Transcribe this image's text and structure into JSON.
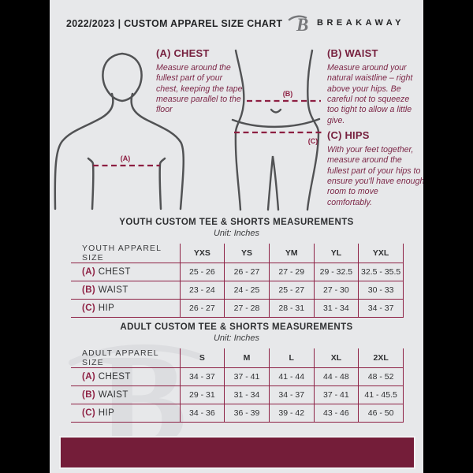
{
  "header": {
    "title": "2022/2023 | CUSTOM APPAREL SIZE CHART",
    "brand": "BREAKAWAY",
    "watermark_letter": "B"
  },
  "guide": {
    "chest": {
      "marker": "(A)",
      "heading": "(A) CHEST",
      "body": "Measure around the fullest part of your chest, keeping the tape measure parallel to the floor"
    },
    "waist": {
      "marker": "(B)",
      "heading": "(B) WAIST",
      "body": "Measure around your natural waistline – right above your hips. Be careful not to squeeze too tight to allow a little give."
    },
    "hips": {
      "marker": "(C)",
      "heading": "(C) HIPS",
      "body": "With your feet together, measure around the fullest part of your hips to ensure you'll have enough room to move comfortably."
    }
  },
  "tables": [
    {
      "title": "YOUTH CUSTOM TEE & SHORTS MEASUREMENTS",
      "unit": "Unit: Inches",
      "size_header": "YOUTH APPAREL SIZE",
      "sizes": [
        "YXS",
        "YS",
        "YM",
        "YL",
        "YXL"
      ],
      "rows": [
        {
          "key": "(A)",
          "label": "CHEST",
          "values": [
            "25 - 26",
            "26 - 27",
            "27 - 29",
            "29 - 32.5",
            "32.5 - 35.5"
          ]
        },
        {
          "key": "(B)",
          "label": "WAIST",
          "values": [
            "23 - 24",
            "24 - 25",
            "25 - 27",
            "27 - 30",
            "30 - 33"
          ]
        },
        {
          "key": "(C)",
          "label": "HIP",
          "values": [
            "26 - 27",
            "27 - 28",
            "28 - 31",
            "31 - 34",
            "34 - 37"
          ]
        }
      ]
    },
    {
      "title": "ADULT CUSTOM TEE & SHORTS MEASUREMENTS",
      "unit": "Unit: Inches",
      "size_header": "ADULT APPAREL SIZE",
      "sizes": [
        "S",
        "M",
        "L",
        "XL",
        "2XL"
      ],
      "rows": [
        {
          "key": "(A)",
          "label": "CHEST",
          "values": [
            "34 - 37",
            "37 - 41",
            "41 - 44",
            "44 - 48",
            "48 - 52"
          ]
        },
        {
          "key": "(B)",
          "label": "WAIST",
          "values": [
            "29 - 31",
            "31 - 34",
            "34 - 37",
            "37 - 41",
            "41 - 45.5"
          ]
        },
        {
          "key": "(C)",
          "label": "HIP",
          "values": [
            "34 - 36",
            "36 - 39",
            "39 - 42",
            "43 - 46",
            "46 - 50"
          ]
        }
      ]
    }
  ],
  "colors": {
    "background": "#e7e8ea",
    "maroon_dark": "#741d39",
    "accent_maroon": "#8d1f42",
    "text_dark": "#2f3032",
    "figure_gray": "#515254",
    "watermark_gray": "#dcdde0"
  }
}
